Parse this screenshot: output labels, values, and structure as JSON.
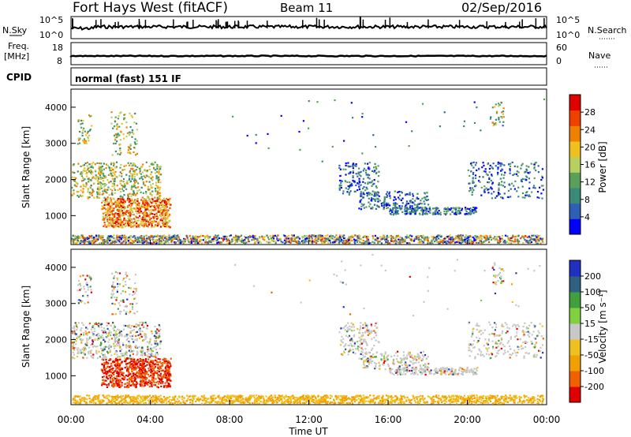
{
  "header": {
    "title": "Fort Hays West (fitACF)",
    "beam": "Beam 11",
    "date": "02/Sep/2016",
    "cpid_label": "CPID",
    "cpid_value": "normal (fast) 151 IF"
  },
  "colors": {
    "power_scale": [
      "#0000ff",
      "#2e5fb4",
      "#3a8a7a",
      "#5aa05a",
      "#b8d060",
      "#f0c020",
      "#f08000",
      "#f04000",
      "#e00000"
    ],
    "velocity_scale": [
      "#2030c0",
      "#306080",
      "#40a040",
      "#80d040",
      "#c8c8c8",
      "#f0c020",
      "#f0a000",
      "#f06000",
      "#e00000"
    ]
  },
  "chart_data": [
    {
      "type": "line",
      "name": "noise-panel",
      "ylabel_left": "N.Sky",
      "ylabel_right": "N.Search",
      "yticks_left": [
        "10^5",
        "10^0"
      ],
      "yticks_right": [
        "10^5",
        "10^0"
      ],
      "x_range": [
        0,
        24
      ]
    },
    {
      "type": "line",
      "name": "frequency-panel",
      "ylabel_left_top": "Freq.",
      "ylabel_left_unit": "[MHz]",
      "ylabel_right": "Nave",
      "yticks_left": [
        "18",
        "8"
      ],
      "yticks_right": [
        "60",
        "0"
      ],
      "x_range": [
        0,
        24
      ]
    },
    {
      "type": "heatmap",
      "name": "power-panel",
      "ylabel": "Slant Range [km]",
      "yticks": [
        "1000",
        "2000",
        "3000",
        "4000"
      ],
      "ylim": [
        200,
        4500
      ],
      "x_range": [
        0,
        24
      ],
      "colorbar_label": "Power [dB]",
      "colorbar_ticks": [
        "4",
        "8",
        "12",
        "16",
        "20",
        "24",
        "28"
      ]
    },
    {
      "type": "heatmap",
      "name": "velocity-panel",
      "ylabel": "Slant Range [km]",
      "yticks": [
        "1000",
        "2000",
        "3000",
        "4000"
      ],
      "ylim": [
        200,
        4500
      ],
      "x_range": [
        0,
        24
      ],
      "xticks": [
        "00:00",
        "04:00",
        "08:00",
        "12:00",
        "16:00",
        "20:00",
        "00:00"
      ],
      "xlabel": "Time UT",
      "colorbar_label": "Velocity [m s⁻¹]",
      "colorbar_ticks": [
        "200",
        "100",
        "50",
        "15",
        "-15",
        "-50",
        "-100",
        "-200"
      ]
    }
  ]
}
